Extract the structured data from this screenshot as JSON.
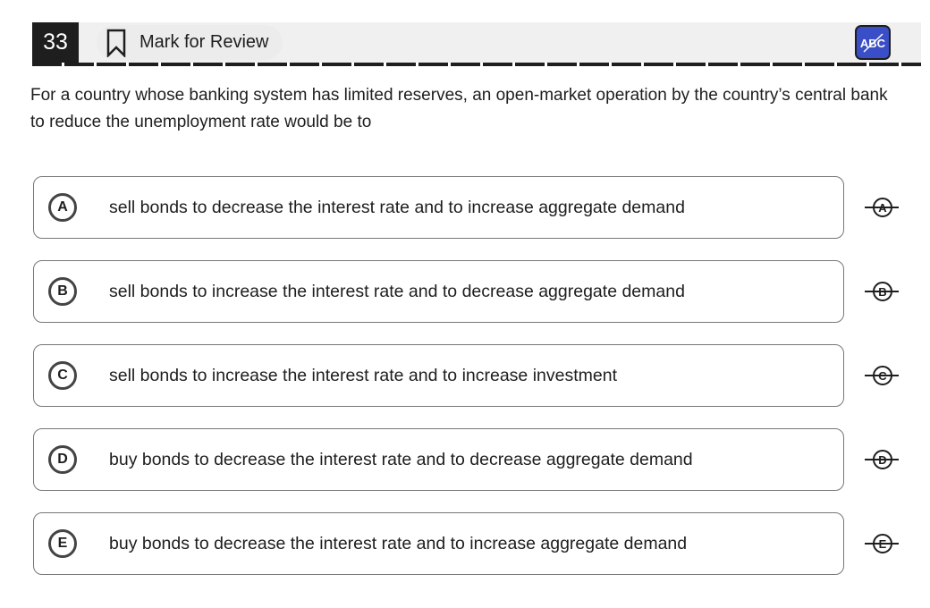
{
  "header": {
    "question_number": "33",
    "mark_label": "Mark for Review",
    "abc_icon": "abc-strikethrough-icon",
    "abc_color": "#3a4fc7"
  },
  "question": "For a country whose banking system has limited reserves, an open-market operation by the country’s central bank to reduce the unemployment rate would be to",
  "options": [
    {
      "letter": "A",
      "text": "sell bonds to decrease the interest rate and to increase aggregate demand"
    },
    {
      "letter": "B",
      "text": "sell bonds to increase the interest rate and to decrease aggregate demand"
    },
    {
      "letter": "C",
      "text": "sell bonds to increase the interest rate and to increase investment"
    },
    {
      "letter": "D",
      "text": "buy bonds to decrease the interest rate and to decrease aggregate demand"
    },
    {
      "letter": "E",
      "text": "buy bonds to decrease the interest rate and to increase aggregate demand"
    }
  ]
}
